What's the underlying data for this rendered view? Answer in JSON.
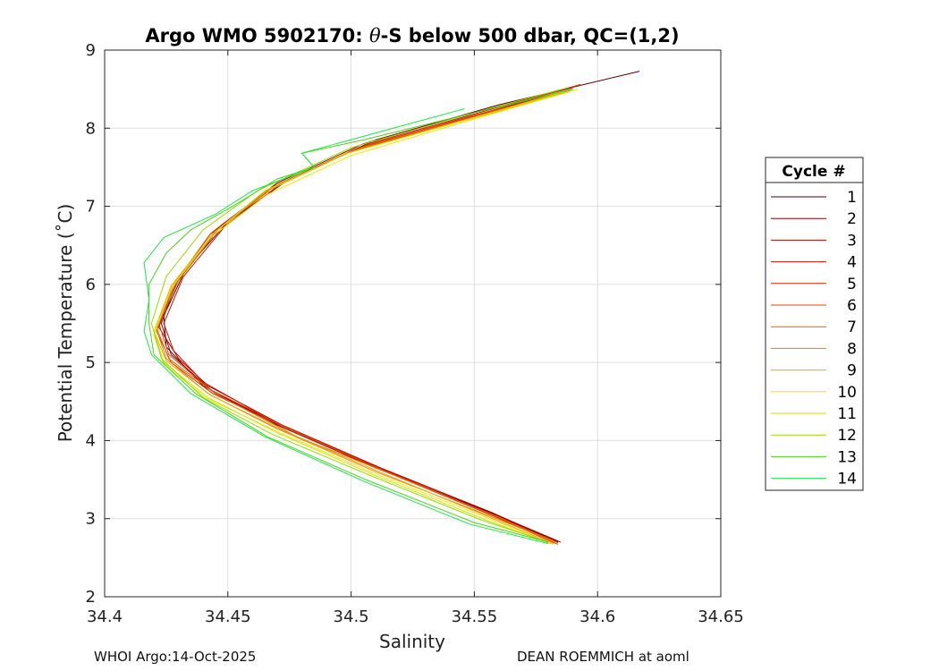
{
  "chart_data": {
    "type": "line",
    "title_parts": [
      "Argo WMO 5902170: ",
      "θ",
      "-S below 500 dbar,  QC=(1,2)"
    ],
    "xlabel": "Salinity",
    "ylabel": "Potential Temperature (˚C)",
    "xlim": [
      34.4,
      34.65
    ],
    "ylim": [
      2,
      9
    ],
    "xticks": [
      "34.4",
      "34.45",
      "34.5",
      "34.55",
      "34.6",
      "34.65"
    ],
    "yticks": [
      "2",
      "3",
      "4",
      "5",
      "6",
      "7",
      "8",
      "9"
    ],
    "grid": true,
    "legend_title": "Cycle #",
    "legend_position": "right",
    "series": [
      {
        "name": "1",
        "color": "#5a0000",
        "points": [
          [
            34.617,
            8.73
          ],
          [
            34.56,
            8.3
          ],
          [
            34.51,
            7.85
          ],
          [
            34.475,
            7.35
          ],
          [
            34.45,
            6.8
          ],
          [
            34.433,
            6.2
          ],
          [
            34.424,
            5.6
          ],
          [
            34.425,
            5.2
          ],
          [
            34.44,
            4.7
          ],
          [
            34.47,
            4.2
          ],
          [
            34.51,
            3.65
          ],
          [
            34.555,
            3.1
          ],
          [
            34.585,
            2.7
          ]
        ]
      },
      {
        "name": "2",
        "color": "#8c0000",
        "points": [
          [
            34.59,
            8.52
          ],
          [
            34.55,
            8.2
          ],
          [
            34.505,
            7.8
          ],
          [
            34.47,
            7.3
          ],
          [
            34.447,
            6.75
          ],
          [
            34.43,
            6.1
          ],
          [
            34.423,
            5.5
          ],
          [
            34.427,
            5.1
          ],
          [
            34.445,
            4.6
          ],
          [
            34.475,
            4.15
          ],
          [
            34.515,
            3.6
          ],
          [
            34.558,
            3.05
          ],
          [
            34.583,
            2.72
          ]
        ]
      },
      {
        "name": "3",
        "color": "#b40000",
        "points": [
          [
            34.59,
            8.5
          ],
          [
            34.548,
            8.15
          ],
          [
            34.503,
            7.75
          ],
          [
            34.468,
            7.25
          ],
          [
            34.445,
            6.7
          ],
          [
            34.428,
            6.0
          ],
          [
            34.422,
            5.45
          ],
          [
            34.43,
            5.05
          ],
          [
            34.442,
            4.7
          ],
          [
            34.472,
            4.2
          ],
          [
            34.512,
            3.65
          ],
          [
            34.557,
            3.08
          ],
          [
            34.584,
            2.7
          ]
        ]
      },
      {
        "name": "4",
        "color": "#c81400",
        "points": [
          [
            34.592,
            8.55
          ],
          [
            34.552,
            8.2
          ],
          [
            34.507,
            7.8
          ],
          [
            34.472,
            7.3
          ],
          [
            34.449,
            6.75
          ],
          [
            34.432,
            6.1
          ],
          [
            34.424,
            5.5
          ],
          [
            34.428,
            5.15
          ],
          [
            34.44,
            4.75
          ],
          [
            34.468,
            4.25
          ],
          [
            34.508,
            3.7
          ],
          [
            34.553,
            3.1
          ],
          [
            34.582,
            2.73
          ]
        ]
      },
      {
        "name": "5",
        "color": "#d22800",
        "points": [
          [
            34.588,
            8.48
          ],
          [
            34.546,
            8.12
          ],
          [
            34.5,
            7.7
          ],
          [
            34.466,
            7.2
          ],
          [
            34.443,
            6.65
          ],
          [
            34.427,
            5.95
          ],
          [
            34.421,
            5.4
          ],
          [
            34.427,
            5.0
          ],
          [
            34.444,
            4.6
          ],
          [
            34.474,
            4.15
          ],
          [
            34.514,
            3.6
          ],
          [
            34.558,
            3.03
          ],
          [
            34.583,
            2.68
          ]
        ]
      },
      {
        "name": "6",
        "color": "#dc4600",
        "points": [
          [
            34.593,
            8.56
          ],
          [
            34.552,
            8.18
          ],
          [
            34.506,
            7.78
          ],
          [
            34.47,
            7.28
          ],
          [
            34.446,
            6.7
          ],
          [
            34.43,
            6.05
          ],
          [
            34.422,
            5.5
          ],
          [
            34.426,
            5.1
          ],
          [
            34.443,
            4.65
          ],
          [
            34.473,
            4.18
          ],
          [
            34.513,
            3.62
          ],
          [
            34.557,
            3.05
          ],
          [
            34.584,
            2.69
          ]
        ]
      },
      {
        "name": "7",
        "color": "#e66400",
        "points": [
          [
            34.59,
            8.5
          ],
          [
            34.549,
            8.14
          ],
          [
            34.503,
            7.74
          ],
          [
            34.468,
            7.24
          ],
          [
            34.445,
            6.68
          ],
          [
            34.429,
            6.02
          ],
          [
            34.421,
            5.45
          ],
          [
            34.426,
            5.05
          ],
          [
            34.445,
            4.6
          ],
          [
            34.478,
            4.05
          ],
          [
            34.518,
            3.55
          ],
          [
            34.56,
            3.02
          ],
          [
            34.584,
            2.67
          ]
        ]
      },
      {
        "name": "8",
        "color": "#e68200",
        "points": [
          [
            34.589,
            8.48
          ],
          [
            34.546,
            8.1
          ],
          [
            34.5,
            7.7
          ],
          [
            34.466,
            7.2
          ],
          [
            34.444,
            6.65
          ],
          [
            34.428,
            6.0
          ],
          [
            34.421,
            5.42
          ],
          [
            34.425,
            5.05
          ],
          [
            34.442,
            4.6
          ],
          [
            34.47,
            4.15
          ],
          [
            34.51,
            3.6
          ],
          [
            34.555,
            3.05
          ],
          [
            34.583,
            2.7
          ]
        ]
      },
      {
        "name": "9",
        "color": "#e6aa00",
        "points": [
          [
            34.588,
            8.46
          ],
          [
            34.544,
            8.08
          ],
          [
            34.498,
            7.68
          ],
          [
            34.465,
            7.18
          ],
          [
            34.443,
            6.62
          ],
          [
            34.427,
            5.98
          ],
          [
            34.42,
            5.4
          ],
          [
            34.425,
            5.02
          ],
          [
            34.443,
            4.58
          ],
          [
            34.473,
            4.12
          ],
          [
            34.513,
            3.58
          ],
          [
            34.556,
            3.02
          ],
          [
            34.582,
            2.68
          ]
        ]
      },
      {
        "name": "10",
        "color": "#f0e600",
        "points": [
          [
            34.592,
            8.5
          ],
          [
            34.548,
            8.1
          ],
          [
            34.5,
            7.65
          ],
          [
            34.466,
            7.15
          ],
          [
            34.443,
            6.6
          ],
          [
            34.427,
            5.95
          ],
          [
            34.42,
            5.35
          ],
          [
            34.424,
            4.98
          ],
          [
            34.441,
            4.55
          ],
          [
            34.471,
            4.1
          ],
          [
            34.511,
            3.56
          ],
          [
            34.556,
            3.0
          ],
          [
            34.582,
            2.67
          ]
        ]
      },
      {
        "name": "11",
        "color": "#c8e600",
        "points": [
          [
            34.59,
            8.5
          ],
          [
            34.546,
            8.1
          ],
          [
            34.499,
            7.68
          ],
          [
            34.465,
            7.2
          ],
          [
            34.444,
            6.65
          ],
          [
            34.428,
            6.0
          ],
          [
            34.42,
            5.4
          ],
          [
            34.424,
            5.0
          ],
          [
            34.442,
            4.55
          ],
          [
            34.47,
            4.1
          ],
          [
            34.51,
            3.55
          ],
          [
            34.555,
            2.98
          ],
          [
            34.581,
            2.68
          ]
        ]
      },
      {
        "name": "12",
        "color": "#96dc00",
        "points": [
          [
            34.588,
            8.52
          ],
          [
            34.55,
            8.2
          ],
          [
            34.5,
            7.75
          ],
          [
            34.462,
            7.2
          ],
          [
            34.44,
            6.7
          ],
          [
            34.425,
            6.1
          ],
          [
            34.419,
            5.5
          ],
          [
            34.423,
            5.05
          ],
          [
            34.44,
            4.55
          ],
          [
            34.468,
            4.08
          ],
          [
            34.508,
            3.55
          ],
          [
            34.553,
            2.98
          ],
          [
            34.58,
            2.7
          ]
        ]
      },
      {
        "name": "13",
        "color": "#46d21e",
        "points": [
          [
            34.59,
            8.5
          ],
          [
            34.55,
            8.2
          ],
          [
            34.505,
            7.85
          ],
          [
            34.48,
            7.68
          ],
          [
            34.485,
            7.5
          ],
          [
            34.47,
            7.35
          ],
          [
            34.452,
            7.0
          ],
          [
            34.435,
            6.7
          ],
          [
            34.425,
            6.4
          ],
          [
            34.418,
            6.0
          ],
          [
            34.418,
            5.5
          ],
          [
            34.42,
            5.1
          ],
          [
            34.437,
            4.6
          ],
          [
            34.466,
            4.05
          ],
          [
            34.506,
            3.5
          ],
          [
            34.55,
            2.95
          ],
          [
            34.58,
            2.7
          ]
        ]
      },
      {
        "name": "14",
        "color": "#1ee646",
        "points": [
          [
            34.546,
            8.25
          ],
          [
            34.48,
            7.68
          ],
          [
            34.485,
            7.5
          ],
          [
            34.46,
            7.2
          ],
          [
            34.445,
            6.9
          ],
          [
            34.424,
            6.6
          ],
          [
            34.416,
            6.28
          ],
          [
            34.418,
            5.8
          ],
          [
            34.416,
            5.4
          ],
          [
            34.419,
            5.1
          ],
          [
            34.435,
            4.6
          ],
          [
            34.465,
            4.05
          ],
          [
            34.505,
            3.48
          ],
          [
            34.548,
            2.93
          ],
          [
            34.58,
            2.68
          ]
        ]
      }
    ]
  },
  "footer": {
    "left": "WHOI Argo:14-Oct-2025",
    "right": "DEAN ROEMMICH at aoml"
  }
}
